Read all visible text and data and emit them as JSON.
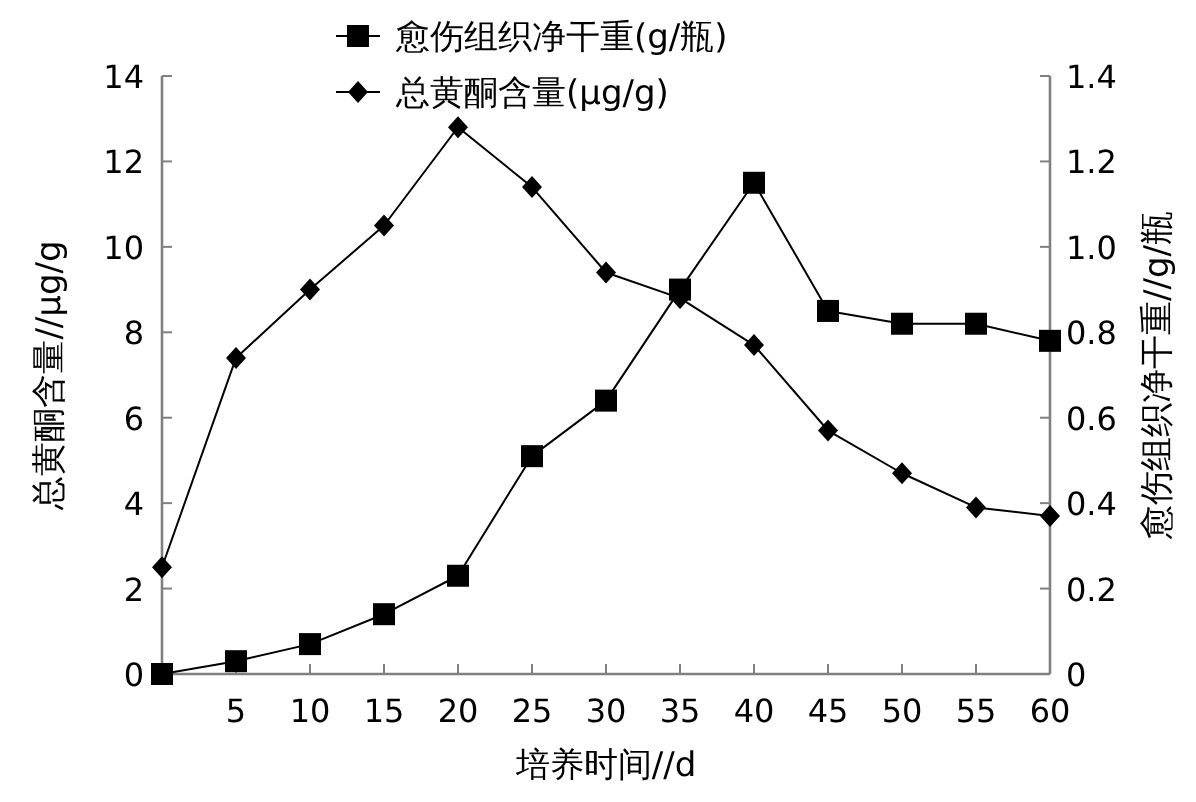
{
  "chart_data": {
    "type": "line",
    "xlabel": "培养时间//d",
    "ylabel": "总黄酮含量//μg/g",
    "y2label": "愈伤组织净干重//g/瓶",
    "x": [
      0,
      5,
      10,
      15,
      20,
      25,
      30,
      35,
      40,
      45,
      50,
      55,
      60
    ],
    "series": [
      {
        "name": "愈伤组织净干重(g/瓶)",
        "color": "#000000",
        "axis": "y2",
        "marker": "square",
        "values": [
          0.0,
          0.03,
          0.07,
          0.14,
          0.23,
          0.51,
          0.64,
          0.9,
          1.15,
          0.85,
          0.82,
          0.82,
          0.78
        ]
      },
      {
        "name": "总黄酮含量(μg/g)",
        "color": "#000000",
        "marker": "diamond",
        "values": [
          2.5,
          7.4,
          9.0,
          10.5,
          12.8,
          11.4,
          9.4,
          8.8,
          7.7,
          5.7,
          4.7,
          3.9,
          3.7
        ]
      }
    ],
    "xlim": [
      0,
      60
    ],
    "xticks": [
      5,
      10,
      15,
      20,
      25,
      30,
      35,
      40,
      45,
      50,
      55,
      60
    ],
    "ylim": [
      0,
      14
    ],
    "yticks": [
      0,
      2,
      4,
      6,
      8,
      10,
      12,
      14
    ],
    "y2lim": [
      0,
      1.4
    ],
    "y2ticks": [
      0,
      {
        "value": 0.2,
        "label": "0.2"
      },
      {
        "value": 0.4,
        "label": "0.4"
      },
      {
        "value": 0.6,
        "label": "0.6"
      },
      {
        "value": 0.8,
        "label": "0.8"
      },
      {
        "value": 1.0,
        "label": "1.0"
      },
      {
        "value": 1.2,
        "label": "1.2"
      },
      {
        "value": 1.4,
        "label": "1.4"
      }
    ],
    "grid": false,
    "legend": "top",
    "line_style": "solid"
  }
}
